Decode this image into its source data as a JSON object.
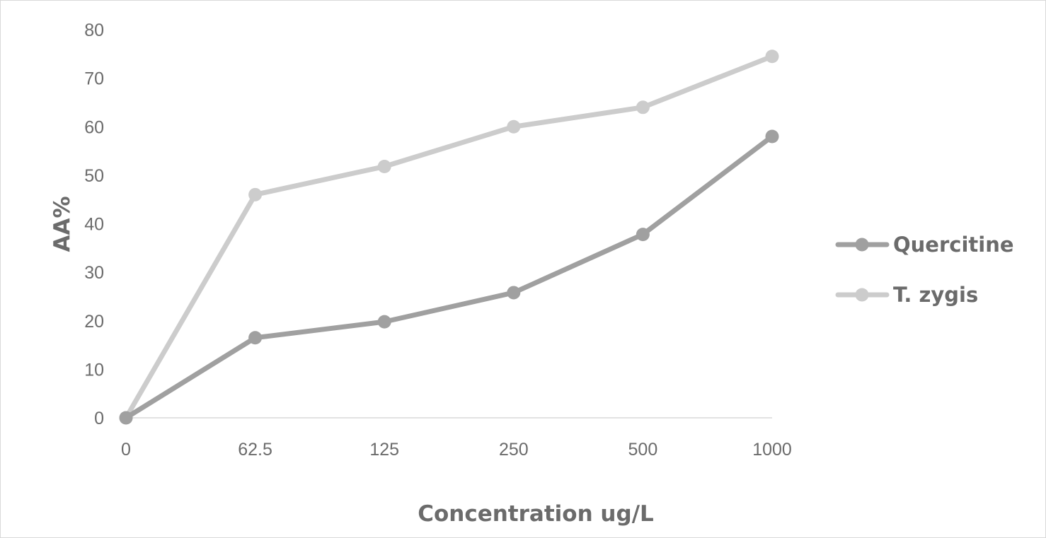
{
  "chart_data": {
    "type": "line",
    "categories": [
      "0",
      "62.5",
      "125",
      "250",
      "500",
      "1000"
    ],
    "series": [
      {
        "name": "Quercitine",
        "values": [
          0,
          16.5,
          19.8,
          25.8,
          37.8,
          58
        ],
        "color": "#a0a0a0"
      },
      {
        "name": "T. zygis",
        "values": [
          0,
          46,
          51.8,
          60,
          64,
          74.5
        ],
        "color": "#cccccc"
      }
    ],
    "title": "",
    "xlabel": "Concentration ug/L",
    "ylabel": "AA%",
    "ylim": [
      0,
      80
    ],
    "yticks": [
      0,
      10,
      20,
      30,
      40,
      50,
      60,
      70,
      80
    ],
    "grid": false,
    "legend": "right",
    "axis_color": "#d9d9d9",
    "text_color": "#6b6b6b"
  }
}
